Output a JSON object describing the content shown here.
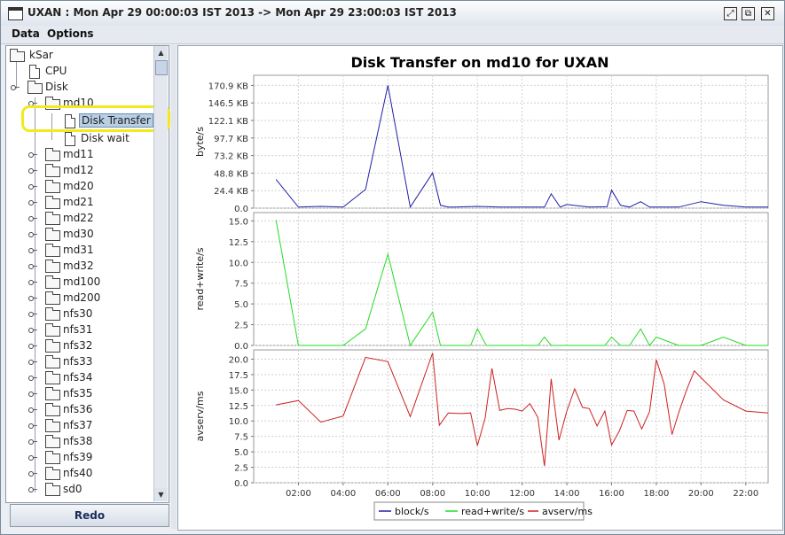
{
  "window": {
    "title": "UXAN : Mon Apr 29 00:00:03 IST 2013 -> Mon Apr 29 23:00:03 IST 2013"
  },
  "menu": {
    "data": "Data",
    "options": "Options"
  },
  "tree": {
    "root": "kSar",
    "cpu": "CPU",
    "disk": "Disk",
    "md10": "md10",
    "disk_transfer": "Disk Transfer",
    "disk_wait": "Disk wait",
    "devices": [
      "md11",
      "md12",
      "md20",
      "md21",
      "md22",
      "md30",
      "md31",
      "md32",
      "md100",
      "md200",
      "nfs30",
      "nfs31",
      "nfs32",
      "nfs33",
      "nfs34",
      "nfs35",
      "nfs36",
      "nfs37",
      "nfs38",
      "nfs39",
      "nfs40",
      "sd0"
    ]
  },
  "redo_label": "Redo",
  "colors": {
    "block": "#1f1fa8",
    "rw": "#22dd22",
    "avserv": "#cc2222"
  },
  "chart_data": {
    "type": "line",
    "title": "Disk Transfer on md10 for UXAN",
    "x_ticks": [
      "02:00",
      "04:00",
      "06:00",
      "08:00",
      "10:00",
      "12:00",
      "14:00",
      "16:00",
      "18:00",
      "20:00",
      "22:00"
    ],
    "x_range_hours": [
      0.0,
      23.0
    ],
    "panels": [
      {
        "ylabel": "byte/s",
        "y_range": [
          0,
          185000
        ],
        "y_ticks": [
          {
            "v": 0,
            "label": "0.0"
          },
          {
            "v": 24400,
            "label": "24.4 KB"
          },
          {
            "v": 48800,
            "label": "48.8 KB"
          },
          {
            "v": 73200,
            "label": "73.2 KB"
          },
          {
            "v": 97700,
            "label": "97.7 KB"
          },
          {
            "v": 122100,
            "label": "122.1 KB"
          },
          {
            "v": 146500,
            "label": "146.5 KB"
          },
          {
            "v": 170900,
            "label": "170.9 KB"
          }
        ],
        "series": {
          "name": "block/s",
          "color_key": "block",
          "x": [
            1.0,
            2.0,
            3.0,
            4.0,
            5.0,
            6.0,
            7.0,
            8.0,
            8.35,
            8.7,
            9.0,
            10.0,
            11.0,
            12.0,
            13.0,
            13.3,
            13.7,
            14.0,
            15.0,
            15.8,
            16.0,
            16.4,
            16.8,
            17.3,
            17.7,
            18.0,
            19.0,
            20.0,
            21.0,
            22.0,
            23.0
          ],
          "y": [
            40000,
            1500,
            2500,
            1500,
            26000,
            171000,
            1500,
            49000,
            4000,
            1500,
            1500,
            2500,
            1500,
            1500,
            1500,
            20000,
            1500,
            5000,
            1500,
            2000,
            25000,
            4000,
            1500,
            9000,
            1500,
            1500,
            1500,
            9000,
            4000,
            1500,
            1500
          ]
        }
      },
      {
        "ylabel": "read+write/s",
        "y_range": [
          0,
          16
        ],
        "y_ticks": [
          {
            "v": 0,
            "label": "0.0"
          },
          {
            "v": 2.5,
            "label": "2.5"
          },
          {
            "v": 5,
            "label": "5.0"
          },
          {
            "v": 7.5,
            "label": "7.5"
          },
          {
            "v": 10,
            "label": "10.0"
          },
          {
            "v": 12.5,
            "label": "12.5"
          },
          {
            "v": 15,
            "label": "15.0"
          }
        ],
        "series": {
          "name": "read+write/s",
          "color_key": "rw",
          "x": [
            1.0,
            2.0,
            3.0,
            4.0,
            5.0,
            6.0,
            7.0,
            8.0,
            8.35,
            9.0,
            9.7,
            10.0,
            10.4,
            11.0,
            12.0,
            12.7,
            13.0,
            13.3,
            14.0,
            15.0,
            15.7,
            16.0,
            16.4,
            16.8,
            17.3,
            17.7,
            18.0,
            19.0,
            20.0,
            21.0,
            22.0,
            23.0
          ],
          "y": [
            15.1,
            0,
            0,
            0,
            2.0,
            11.0,
            0,
            4.0,
            0,
            0,
            0,
            2.0,
            0,
            0,
            0,
            0,
            1.0,
            0,
            0,
            0,
            0,
            1.0,
            0,
            0,
            2.0,
            0,
            1.0,
            0,
            0,
            1.0,
            0,
            0
          ]
        }
      },
      {
        "ylabel": "avserv/ms",
        "y_range": [
          0,
          21.5
        ],
        "y_ticks": [
          {
            "v": 0,
            "label": "0.0"
          },
          {
            "v": 2.5,
            "label": "2.5"
          },
          {
            "v": 5,
            "label": "5.0"
          },
          {
            "v": 7.5,
            "label": "7.5"
          },
          {
            "v": 10,
            "label": "10.0"
          },
          {
            "v": 12.5,
            "label": "12.5"
          },
          {
            "v": 15,
            "label": "15.0"
          },
          {
            "v": 17.5,
            "label": "17.5"
          },
          {
            "v": 20,
            "label": "20.0"
          }
        ],
        "series": {
          "name": "avserv/ms",
          "color_key": "avserv",
          "x": [
            1.0,
            2.0,
            3.0,
            4.0,
            5.0,
            6.0,
            7.0,
            8.0,
            8.3,
            8.7,
            9.3,
            9.7,
            10.0,
            10.35,
            10.65,
            11.0,
            11.35,
            11.7,
            12.0,
            12.35,
            12.7,
            13.0,
            13.3,
            13.65,
            14.0,
            14.35,
            14.7,
            15.0,
            15.35,
            15.7,
            16.0,
            16.35,
            16.7,
            17.0,
            17.35,
            17.7,
            18.0,
            18.35,
            18.7,
            19.0,
            19.35,
            19.7,
            20.0,
            21.0,
            22.0,
            23.0
          ],
          "y": [
            12.6,
            13.3,
            9.8,
            10.8,
            20.3,
            19.6,
            10.7,
            21.0,
            9.3,
            11.3,
            11.2,
            11.3,
            6.0,
            10.5,
            18.5,
            11.7,
            12.0,
            11.9,
            11.6,
            12.8,
            10.6,
            2.7,
            16.8,
            6.9,
            11.6,
            15.2,
            12.2,
            12.0,
            9.2,
            11.6,
            6.1,
            8.4,
            11.7,
            11.6,
            8.7,
            11.5,
            19.9,
            16.0,
            7.8,
            11.3,
            15.0,
            18.1,
            17.0,
            13.4,
            11.6,
            11.3
          ]
        }
      }
    ],
    "legend": [
      "block/s",
      "read+write/s",
      "avserv/ms"
    ],
    "legend_position": "bottom"
  }
}
